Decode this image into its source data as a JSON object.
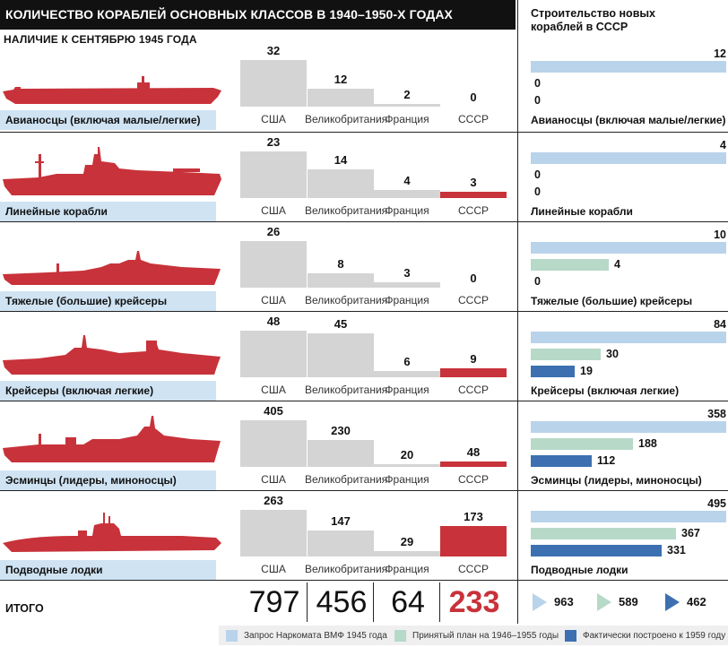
{
  "title": "КОЛИЧЕСТВО КОРАБЛЕЙ ОСНОВНЫХ КЛАССОВ В 1940–1950-Х ГОДАХ",
  "subtitle": "НАЛИЧИЕ К СЕНТЯБРЮ 1945 ГОДА",
  "right_title_line1": "Строительство новых",
  "right_title_line2": "кораблей в СССР",
  "colors": {
    "grey_bar": "#d4d4d4",
    "ussr_bar": "#c8323a",
    "ship": "#c8323a",
    "label_bg": "#cfe3f3",
    "request": "#b9d3ea",
    "plan": "#b7d9c8",
    "built": "#3d70b0"
  },
  "chart_data": [
    {
      "type": "bar",
      "title": "Наличие к сентябрю 1945 года",
      "categories": [
        "США",
        "Великобритания",
        "Франция",
        "СССР"
      ],
      "groups": [
        {
          "name": "Авианосцы (включая малые/легкие)",
          "ship_icon": "aircraft-carrier-silhouette",
          "values": [
            32,
            12,
            2,
            0
          ]
        },
        {
          "name": "Линейные корабли",
          "ship_icon": "battleship-silhouette",
          "values": [
            23,
            14,
            4,
            3
          ]
        },
        {
          "name": "Тяжелые (большие) крейсеры",
          "ship_icon": "heavy-cruiser-silhouette",
          "values": [
            26,
            8,
            3,
            0
          ]
        },
        {
          "name": "Крейсеры (включая легкие)",
          "ship_icon": "cruiser-silhouette",
          "values": [
            48,
            45,
            6,
            9
          ]
        },
        {
          "name": "Эсминцы (лидеры, миноносцы)",
          "ship_icon": "destroyer-silhouette",
          "values": [
            405,
            230,
            20,
            48
          ]
        },
        {
          "name": "Подводные лодки",
          "ship_icon": "submarine-silhouette",
          "values": [
            263,
            147,
            29,
            173
          ]
        }
      ],
      "totals_label": "ИТОГО",
      "totals": [
        797,
        456,
        64,
        233
      ]
    },
    {
      "type": "bar",
      "orientation": "horizontal",
      "title": "Строительство новых кораблей в СССР",
      "series": [
        {
          "name": "Запрос Наркомата ВМФ 1945 года",
          "values": [
            12,
            4,
            10,
            84,
            358,
            495
          ],
          "total": 963
        },
        {
          "name": "Принятый план на 1946–1955 годы",
          "values": [
            0,
            0,
            4,
            30,
            188,
            367
          ],
          "total": 589
        },
        {
          "name": "Фактически построено к 1959 году",
          "values": [
            0,
            0,
            0,
            19,
            112,
            331
          ],
          "total": 462
        }
      ],
      "categories": [
        "Авианосцы (включая малые/легкие)",
        "Линейные корабли",
        "Тяжелые (большие) крейсеры",
        "Крейсеры (включая легкие)",
        "Эсминцы (лидеры, миноносцы)",
        "Подводные лодки"
      ]
    }
  ]
}
